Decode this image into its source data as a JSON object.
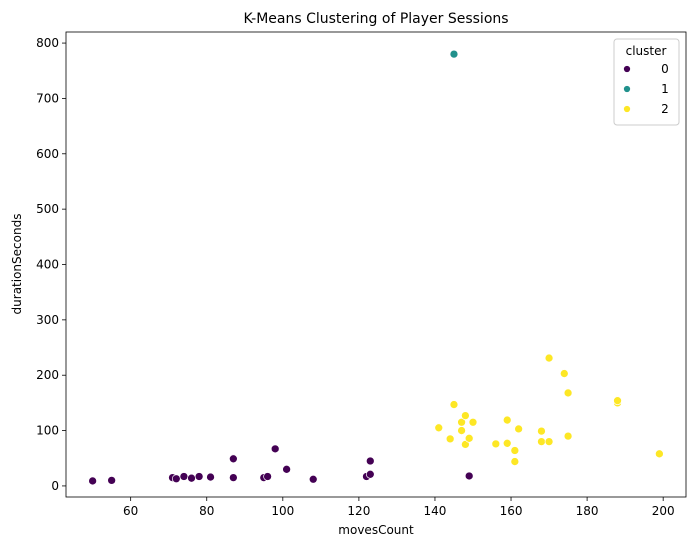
{
  "chart_data": {
    "type": "scatter",
    "title": "K-Means Clustering of Player Sessions",
    "xlabel": "movesCount",
    "ylabel": "durationSeconds",
    "xlim": [
      43,
      206
    ],
    "ylim": [
      -20,
      820
    ],
    "xticks": [
      60,
      80,
      100,
      120,
      140,
      160,
      180,
      200
    ],
    "yticks": [
      0,
      100,
      200,
      300,
      400,
      500,
      600,
      700,
      800
    ],
    "grid": false,
    "legend": {
      "title": "cluster",
      "placement": "top-right"
    },
    "series": [
      {
        "name": "0",
        "color": "#440154",
        "points": [
          [
            50,
            9
          ],
          [
            55,
            10
          ],
          [
            71,
            15
          ],
          [
            72,
            13
          ],
          [
            74,
            17
          ],
          [
            76,
            14
          ],
          [
            78,
            17
          ],
          [
            81,
            16
          ],
          [
            87,
            15
          ],
          [
            87,
            49
          ],
          [
            95,
            15
          ],
          [
            96,
            17
          ],
          [
            98,
            67
          ],
          [
            101,
            30
          ],
          [
            108,
            12
          ],
          [
            122,
            17
          ],
          [
            123,
            21
          ],
          [
            123,
            45
          ],
          [
            149,
            18
          ]
        ]
      },
      {
        "name": "1",
        "color": "#21918c",
        "points": [
          [
            145,
            780
          ]
        ]
      },
      {
        "name": "2",
        "color": "#fde725",
        "points": [
          [
            141,
            105
          ],
          [
            144,
            85
          ],
          [
            145,
            147
          ],
          [
            147,
            115
          ],
          [
            147,
            100
          ],
          [
            148,
            127
          ],
          [
            148,
            75
          ],
          [
            149,
            86
          ],
          [
            150,
            115
          ],
          [
            156,
            76
          ],
          [
            159,
            77
          ],
          [
            159,
            119
          ],
          [
            161,
            64
          ],
          [
            161,
            44
          ],
          [
            162,
            103
          ],
          [
            168,
            80
          ],
          [
            168,
            99
          ],
          [
            170,
            80
          ],
          [
            170,
            231
          ],
          [
            174,
            203
          ],
          [
            175,
            168
          ],
          [
            175,
            90
          ],
          [
            188,
            150
          ],
          [
            188,
            154
          ],
          [
            199,
            58
          ]
        ]
      }
    ]
  }
}
